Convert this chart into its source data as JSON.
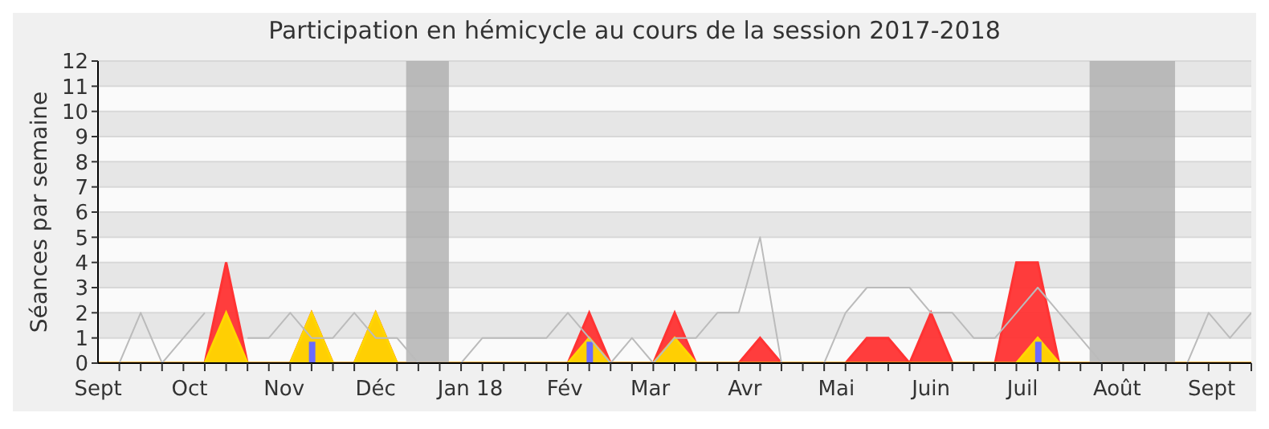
{
  "chart_data": {
    "type": "area",
    "title": "Participation en hémicycle au cours de la session 2017-2018",
    "ylabel": "Séances par semaine",
    "x": [
      "2017-09-01",
      "2017-09-08",
      "2017-09-15",
      "2017-09-22",
      "2017-09-29",
      "2017-10-06",
      "2017-10-13",
      "2017-10-20",
      "2017-10-27",
      "2017-11-03",
      "2017-11-10",
      "2017-11-17",
      "2017-11-24",
      "2017-12-01",
      "2017-12-08",
      "2017-12-15",
      "2017-12-22",
      "2017-12-29",
      "2018-01-05",
      "2018-01-12",
      "2018-01-19",
      "2018-01-26",
      "2018-02-02",
      "2018-02-09",
      "2018-02-16",
      "2018-02-23",
      "2018-03-02",
      "2018-03-09",
      "2018-03-16",
      "2018-03-23",
      "2018-03-30",
      "2018-04-06",
      "2018-04-13",
      "2018-04-20",
      "2018-04-27",
      "2018-05-04",
      "2018-05-11",
      "2018-05-18",
      "2018-05-25",
      "2018-06-01",
      "2018-06-08",
      "2018-06-15",
      "2018-06-22",
      "2018-06-29",
      "2018-07-06",
      "2018-07-13",
      "2018-07-20",
      "2018-07-27",
      "2018-08-03",
      "2018-08-10",
      "2018-08-17",
      "2018-08-24",
      "2018-08-31",
      "2018-09-07",
      "2018-09-14"
    ],
    "series": [
      {
        "type": "line",
        "color": "#bbbbbb",
        "values": [
          null,
          0,
          2,
          0,
          1,
          2,
          null,
          1,
          1,
          2,
          1,
          1,
          2,
          1,
          1,
          0,
          0,
          0,
          1,
          1,
          1,
          1,
          2,
          1,
          0,
          1,
          0,
          1,
          1,
          2,
          2,
          5,
          0,
          0,
          0,
          2,
          3,
          3,
          3,
          2,
          2,
          1,
          1,
          2,
          3,
          2,
          1,
          0,
          null,
          null,
          null,
          0,
          2,
          1,
          2
        ]
      },
      {
        "color": "#ff3333",
        "values": [
          0,
          0,
          0,
          0,
          0,
          0,
          4,
          0,
          0,
          0,
          2,
          0,
          0,
          2,
          0,
          0,
          0,
          0,
          0,
          0,
          0,
          0,
          0,
          2,
          0,
          0,
          0,
          2,
          0,
          0,
          0,
          1,
          0,
          0,
          0,
          0,
          1,
          1,
          0,
          2,
          0,
          0,
          0,
          4,
          4,
          0,
          0,
          0,
          0,
          0,
          0,
          0,
          0,
          0,
          0
        ]
      },
      {
        "color": "#ffd700",
        "values": [
          0,
          0,
          0,
          0,
          0,
          0,
          2,
          0,
          0,
          0,
          2,
          0,
          0,
          2,
          0,
          0,
          0,
          0,
          0,
          0,
          0,
          0,
          0,
          1,
          0,
          0,
          0,
          1,
          0,
          0,
          0,
          0,
          0,
          0,
          0,
          0,
          0,
          0,
          0,
          0,
          0,
          0,
          0,
          0,
          1,
          0,
          0,
          0,
          0,
          0,
          0,
          0,
          0,
          0,
          0
        ]
      },
      {
        "type": "bar",
        "color": "#6b6bff",
        "values": [
          null,
          null,
          null,
          null,
          null,
          null,
          null,
          null,
          null,
          null,
          0.85,
          null,
          null,
          null,
          null,
          null,
          null,
          null,
          null,
          null,
          null,
          null,
          null,
          0.85,
          null,
          null,
          null,
          null,
          null,
          null,
          null,
          null,
          null,
          null,
          null,
          null,
          null,
          null,
          null,
          null,
          null,
          null,
          null,
          null,
          0.85,
          null,
          null,
          null,
          null,
          null,
          null,
          null,
          null,
          null,
          null
        ]
      }
    ],
    "xlim": [
      "2017-09-01",
      "2018-09-14"
    ],
    "xticks": [
      {
        "value": "2017-09-01",
        "label": "Sept"
      },
      {
        "value": "2017-10-01",
        "label": "Oct"
      },
      {
        "value": "2017-11-01",
        "label": "Nov"
      },
      {
        "value": "2017-12-01",
        "label": "Déc"
      },
      {
        "value": "2018-01-01",
        "label": "Jan 18"
      },
      {
        "value": "2018-02-01",
        "label": "Fév"
      },
      {
        "value": "2018-03-01",
        "label": "Mar"
      },
      {
        "value": "2018-04-01",
        "label": "Avr"
      },
      {
        "value": "2018-05-01",
        "label": "Mai"
      },
      {
        "value": "2018-06-01",
        "label": "Juin"
      },
      {
        "value": "2018-07-01",
        "label": "Juil"
      },
      {
        "value": "2018-08-01",
        "label": "Août"
      },
      {
        "value": "2018-09-01",
        "label": "Sept"
      },
      {
        "value": "2017-09-08",
        "label": null
      },
      {
        "value": "2017-09-15",
        "label": null
      },
      {
        "value": "2017-09-22",
        "label": null
      },
      {
        "value": "2017-09-29",
        "label": null
      },
      {
        "value": "2017-10-06",
        "label": null
      },
      {
        "value": "2017-10-13",
        "label": null
      },
      {
        "value": "2017-10-20",
        "label": null
      },
      {
        "value": "2017-10-27",
        "label": null
      },
      {
        "value": "2017-11-03",
        "label": null
      },
      {
        "value": "2017-11-10",
        "label": null
      },
      {
        "value": "2017-11-17",
        "label": null
      },
      {
        "value": "2017-11-24",
        "label": null
      },
      {
        "value": "2017-12-08",
        "label": null
      },
      {
        "value": "2017-12-15",
        "label": null
      },
      {
        "value": "2017-12-22",
        "label": null
      },
      {
        "value": "2017-12-29",
        "label": null
      },
      {
        "value": "2018-01-05",
        "label": null
      },
      {
        "value": "2018-01-12",
        "label": null
      },
      {
        "value": "2018-01-19",
        "label": null
      },
      {
        "value": "2018-01-26",
        "label": null
      },
      {
        "value": "2018-02-02",
        "label": null
      },
      {
        "value": "2018-02-09",
        "label": null
      },
      {
        "value": "2018-02-16",
        "label": null
      },
      {
        "value": "2018-02-23",
        "label": null
      },
      {
        "value": "2018-03-02",
        "label": null
      },
      {
        "value": "2018-03-09",
        "label": null
      },
      {
        "value": "2018-03-16",
        "label": null
      },
      {
        "value": "2018-03-23",
        "label": null
      },
      {
        "value": "2018-03-30",
        "label": null
      },
      {
        "value": "2018-04-06",
        "label": null
      },
      {
        "value": "2018-04-13",
        "label": null
      },
      {
        "value": "2018-04-20",
        "label": null
      },
      {
        "value": "2018-04-27",
        "label": null
      },
      {
        "value": "2018-05-04",
        "label": null
      },
      {
        "value": "2018-05-11",
        "label": null
      },
      {
        "value": "2018-05-18",
        "label": null
      },
      {
        "value": "2018-05-25",
        "label": null
      },
      {
        "value": "2018-06-08",
        "label": null
      },
      {
        "value": "2018-06-15",
        "label": null
      },
      {
        "value": "2018-06-22",
        "label": null
      },
      {
        "value": "2018-06-29",
        "label": null
      },
      {
        "value": "2018-07-06",
        "label": null
      },
      {
        "value": "2018-07-13",
        "label": null
      },
      {
        "value": "2018-07-20",
        "label": null
      },
      {
        "value": "2018-07-27",
        "label": null
      },
      {
        "value": "2018-08-03",
        "label": null
      },
      {
        "value": "2018-08-10",
        "label": null
      },
      {
        "value": "2018-08-17",
        "label": null
      },
      {
        "value": "2018-08-24",
        "label": null
      },
      {
        "value": "2018-08-31",
        "label": null
      },
      {
        "value": "2018-09-07",
        "label": null
      },
      {
        "value": "2018-09-14",
        "label": null
      }
    ],
    "ylim": [
      0,
      12
    ],
    "yticks": [
      0,
      1,
      2,
      3,
      4,
      5,
      6,
      7,
      8,
      9,
      10,
      11,
      12
    ],
    "grid": "y",
    "bands": [
      {
        "axis": "x",
        "from": "2017-12-11",
        "to": "2017-12-25",
        "color": "#aaaaaa"
      },
      {
        "axis": "x",
        "from": "2018-07-23",
        "to": "2018-08-20",
        "color": "#aaaaaa"
      }
    ]
  }
}
